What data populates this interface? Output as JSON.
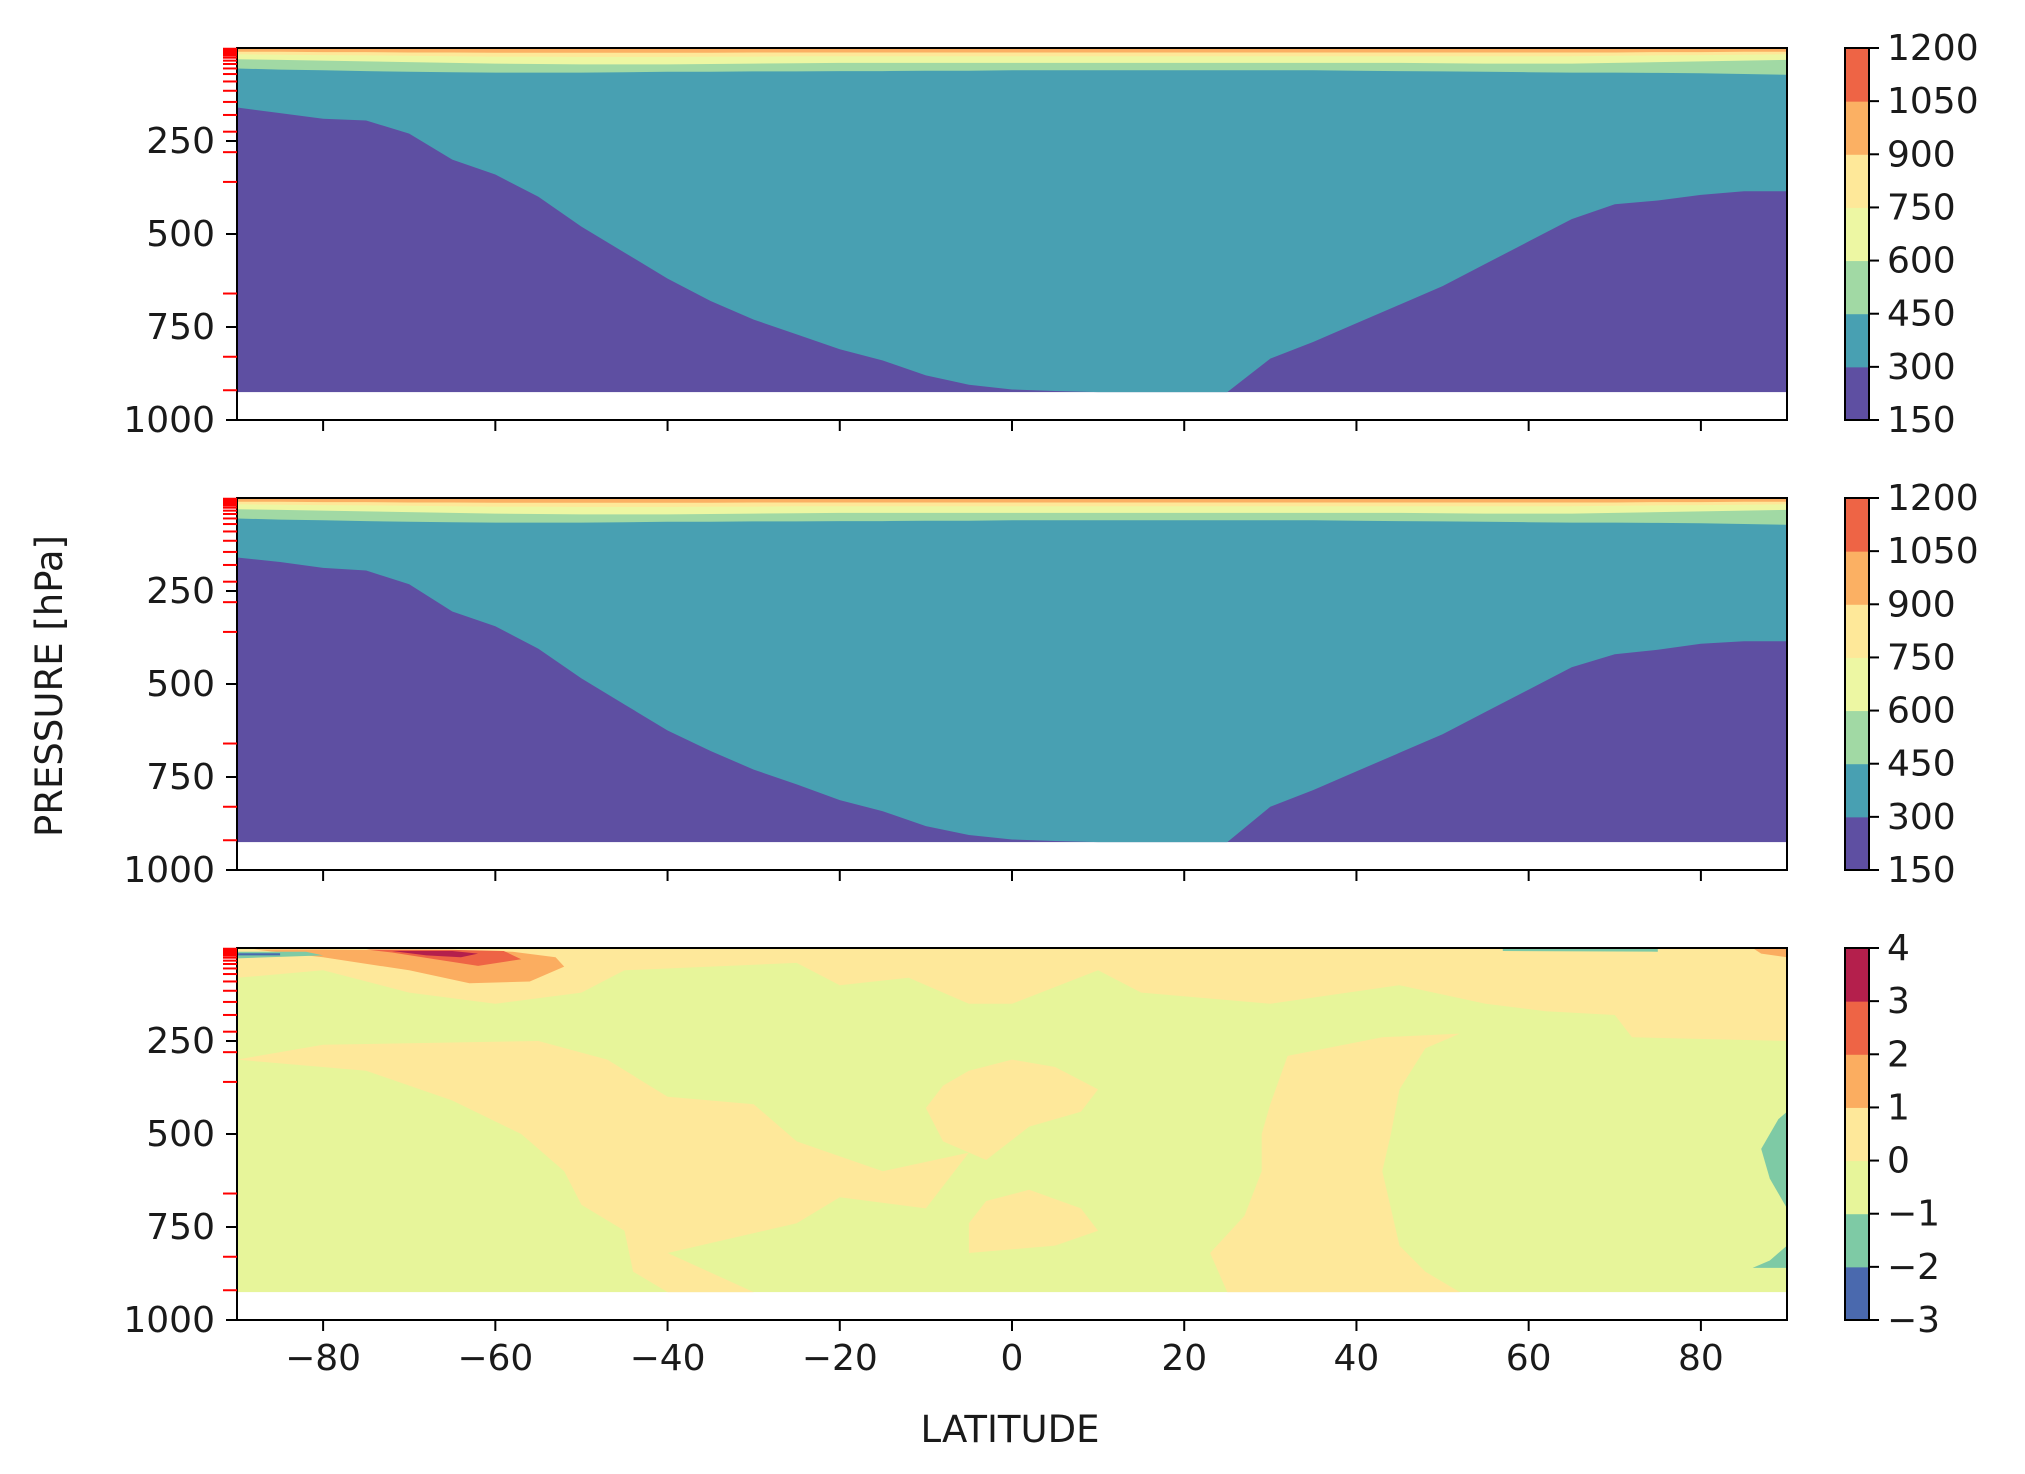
{
  "ylabel": "PRESSURE [hPa]",
  "xlabel": "LATITUDE",
  "chart_data": [
    {
      "type": "contourf",
      "panel": "top",
      "x": [
        -90,
        -85,
        -80,
        -75,
        -70,
        -65,
        -60,
        -55,
        -50,
        -45,
        -40,
        -35,
        -30,
        -25,
        -20,
        -15,
        -10,
        -5,
        0,
        5,
        10,
        15,
        20,
        25,
        30,
        35,
        40,
        45,
        50,
        55,
        60,
        65,
        70,
        75,
        80,
        85,
        90
      ],
      "xlim": [
        -90,
        90
      ],
      "ylim": [
        1000,
        0
      ],
      "y_ticks": [
        250,
        500,
        750,
        1000
      ],
      "x_ticks": [
        -80,
        -60,
        -40,
        -20,
        0,
        20,
        40,
        60,
        80
      ],
      "show_x_tick_labels": false,
      "data_bottom_pressure": 925,
      "levels": [
        150,
        300,
        450,
        600,
        750,
        900,
        1050,
        1200
      ],
      "colors": [
        "#5e4fa2",
        "#48a0b2",
        "#a1d9a4",
        "#edf7a3",
        "#fee899",
        "#fbb063",
        "#ee6445",
        "#d53e4f",
        "#b41f4c"
      ],
      "colorbar_ticks": [
        150,
        300,
        450,
        600,
        750,
        900,
        1050,
        1200
      ],
      "contours": [
        {
          "level": 300,
          "pressure": [
            160,
            175,
            190,
            195,
            230,
            300,
            340,
            400,
            480,
            550,
            620,
            680,
            730,
            770,
            810,
            840,
            880,
            905,
            918,
            922,
            925,
            925,
            925,
            925,
            835,
            790,
            740,
            690,
            640,
            580,
            520,
            460,
            420,
            410,
            395,
            385,
            385
          ]
        },
        {
          "level": 450,
          "pressure": [
            55,
            58,
            60,
            62,
            64,
            65,
            66,
            66,
            66,
            65,
            64,
            64,
            63,
            63,
            62,
            62,
            61,
            61,
            60,
            60,
            60,
            60,
            60,
            60,
            60,
            60,
            61,
            62,
            63,
            64,
            65,
            66,
            66,
            67,
            68,
            70,
            72
          ]
        },
        {
          "level": 600,
          "pressure": [
            30,
            32,
            34,
            36,
            38,
            40,
            42,
            43,
            44,
            44,
            44,
            43,
            42,
            41,
            40,
            40,
            40,
            40,
            40,
            40,
            40,
            40,
            40,
            40,
            40,
            40,
            40,
            40,
            41,
            42,
            42,
            42,
            40,
            38,
            36,
            34,
            32
          ]
        },
        {
          "level": 750,
          "pressure": [
            17,
            18,
            19,
            20,
            21,
            22,
            23,
            23,
            24,
            24,
            24,
            23,
            23,
            22,
            22,
            22,
            22,
            22,
            22,
            22,
            22,
            22,
            22,
            22,
            22,
            22,
            22,
            22,
            22,
            22,
            22,
            22,
            21,
            20,
            19,
            18,
            17
          ]
        },
        {
          "level": 900,
          "pressure": [
            10,
            10,
            11,
            11,
            12,
            12,
            13,
            13,
            13,
            13,
            13,
            13,
            12,
            12,
            12,
            12,
            12,
            12,
            12,
            12,
            12,
            12,
            12,
            12,
            12,
            12,
            12,
            12,
            12,
            12,
            12,
            12,
            12,
            11,
            11,
            10,
            10
          ]
        }
      ]
    },
    {
      "type": "contourf",
      "panel": "middle",
      "x": [
        -90,
        -85,
        -80,
        -75,
        -70,
        -65,
        -60,
        -55,
        -50,
        -45,
        -40,
        -35,
        -30,
        -25,
        -20,
        -15,
        -10,
        -5,
        0,
        5,
        10,
        15,
        20,
        25,
        30,
        35,
        40,
        45,
        50,
        55,
        60,
        65,
        70,
        75,
        80,
        85,
        90
      ],
      "xlim": [
        -90,
        90
      ],
      "ylim": [
        1000,
        0
      ],
      "y_ticks": [
        250,
        500,
        750,
        1000
      ],
      "x_ticks": [
        -80,
        -60,
        -40,
        -20,
        0,
        20,
        40,
        60,
        80
      ],
      "show_x_tick_labels": false,
      "data_bottom_pressure": 925,
      "levels": [
        150,
        300,
        450,
        600,
        750,
        900,
        1050,
        1200
      ],
      "colors": [
        "#5e4fa2",
        "#48a0b2",
        "#a1d9a4",
        "#edf7a3",
        "#fee899",
        "#fbb063",
        "#ee6445",
        "#d53e4f",
        "#b41f4c"
      ],
      "colorbar_ticks": [
        150,
        300,
        450,
        600,
        750,
        900,
        1050,
        1200
      ],
      "contours": [
        {
          "level": 300,
          "pressure": [
            160,
            172,
            188,
            195,
            232,
            305,
            345,
            405,
            485,
            555,
            625,
            680,
            730,
            770,
            812,
            842,
            882,
            906,
            918,
            922,
            925,
            925,
            925,
            925,
            830,
            785,
            735,
            685,
            635,
            575,
            515,
            455,
            420,
            408,
            392,
            385,
            385
          ]
        },
        {
          "level": 450,
          "pressure": [
            55,
            58,
            60,
            62,
            64,
            65,
            66,
            66,
            66,
            65,
            64,
            64,
            63,
            63,
            62,
            62,
            61,
            61,
            60,
            60,
            60,
            60,
            60,
            60,
            60,
            60,
            61,
            62,
            63,
            64,
            65,
            66,
            66,
            67,
            68,
            70,
            72
          ]
        },
        {
          "level": 600,
          "pressure": [
            30,
            32,
            34,
            36,
            38,
            40,
            42,
            43,
            44,
            44,
            44,
            43,
            42,
            41,
            40,
            40,
            40,
            40,
            40,
            40,
            40,
            40,
            40,
            40,
            40,
            40,
            40,
            40,
            41,
            42,
            42,
            42,
            40,
            38,
            36,
            34,
            32
          ]
        },
        {
          "level": 750,
          "pressure": [
            17,
            18,
            19,
            20,
            21,
            22,
            23,
            23,
            24,
            24,
            24,
            23,
            23,
            22,
            22,
            22,
            22,
            22,
            22,
            22,
            22,
            22,
            22,
            22,
            22,
            22,
            22,
            22,
            22,
            22,
            22,
            22,
            21,
            20,
            19,
            18,
            17
          ]
        },
        {
          "level": 900,
          "pressure": [
            10,
            10,
            11,
            11,
            12,
            12,
            13,
            13,
            13,
            13,
            13,
            13,
            12,
            12,
            12,
            12,
            12,
            12,
            12,
            12,
            12,
            12,
            12,
            12,
            12,
            12,
            12,
            12,
            12,
            12,
            12,
            12,
            12,
            11,
            11,
            10,
            10
          ]
        }
      ]
    },
    {
      "type": "contourf",
      "panel": "bottom",
      "xlim": [
        -90,
        90
      ],
      "ylim": [
        1000,
        0
      ],
      "y_ticks": [
        250,
        500,
        750,
        1000
      ],
      "x_ticks": [
        -80,
        -60,
        -40,
        -20,
        0,
        20,
        40,
        60,
        80
      ],
      "show_x_tick_labels": true,
      "data_bottom_pressure": 925,
      "levels": [
        -3,
        -2,
        -1,
        0,
        1,
        2,
        3,
        4
      ],
      "colors": [
        "#4a69ae",
        "#7ecaa5",
        "#e7f59a",
        "#fee89a",
        "#fbad60",
        "#ee6445",
        "#b41f4c"
      ],
      "colorbar_ticks": [
        -3,
        -2,
        -1,
        0,
        1,
        2,
        3,
        4
      ],
      "background_level": -1,
      "regions": [
        {
          "level": 0,
          "outline": [
            [
              -90,
              0
            ],
            [
              90,
              0
            ],
            [
              90,
              250
            ],
            [
              72,
              240
            ],
            [
              70,
              180
            ],
            [
              62,
              170
            ],
            [
              55,
              150
            ],
            [
              45,
              100
            ],
            [
              30,
              150
            ],
            [
              15,
              120
            ],
            [
              10,
              60
            ],
            [
              0,
              150
            ],
            [
              -5,
              150
            ],
            [
              -12,
              80
            ],
            [
              -20,
              100
            ],
            [
              -25,
              40
            ],
            [
              -45,
              60
            ],
            [
              -50,
              120
            ],
            [
              -60,
              150
            ],
            [
              -70,
              120
            ],
            [
              -80,
              60
            ],
            [
              -90,
              80
            ]
          ]
        },
        {
          "level": 0,
          "outline": [
            [
              -90,
              300
            ],
            [
              -75,
              330
            ],
            [
              -65,
              410
            ],
            [
              -57,
              500
            ],
            [
              -52,
              600
            ],
            [
              -50,
              690
            ],
            [
              -45,
              760
            ],
            [
              -44,
              870
            ],
            [
              -40,
              925
            ],
            [
              -30,
              925
            ],
            [
              -40,
              820
            ],
            [
              -25,
              740
            ],
            [
              -20,
              670
            ],
            [
              -10,
              700
            ],
            [
              -5,
              550
            ],
            [
              -15,
              600
            ],
            [
              -25,
              520
            ],
            [
              -30,
              420
            ],
            [
              -40,
              400
            ],
            [
              -47,
              300
            ],
            [
              -55,
              250
            ],
            [
              -80,
              260
            ]
          ]
        },
        {
          "level": 0,
          "outline": [
            [
              -3,
              570
            ],
            [
              2,
              480
            ],
            [
              8,
              440
            ],
            [
              10,
              380
            ],
            [
              5,
              320
            ],
            [
              0,
              300
            ],
            [
              -5,
              330
            ],
            [
              -8,
              370
            ],
            [
              -10,
              430
            ],
            [
              -8,
              520
            ]
          ]
        },
        {
          "level": 0,
          "outline": [
            [
              -5,
              820
            ],
            [
              5,
              800
            ],
            [
              10,
              760
            ],
            [
              8,
              700
            ],
            [
              2,
              650
            ],
            [
              -3,
              680
            ],
            [
              -5,
              740
            ]
          ]
        },
        {
          "level": 0,
          "outline": [
            [
              25,
              925
            ],
            [
              52,
              925
            ],
            [
              48,
              870
            ],
            [
              45,
              800
            ],
            [
              44,
              700
            ],
            [
              43,
              600
            ],
            [
              44,
              500
            ],
            [
              45,
              380
            ],
            [
              48,
              270
            ],
            [
              52,
              230
            ],
            [
              43,
              240
            ],
            [
              32,
              290
            ],
            [
              30,
              420
            ],
            [
              29,
              500
            ],
            [
              29,
              600
            ],
            [
              27,
              720
            ],
            [
              23,
              820
            ]
          ]
        },
        {
          "level": 1,
          "outline": [
            [
              -88,
              4
            ],
            [
              -80,
              4
            ],
            [
              -65,
              8
            ],
            [
              -58,
              10
            ],
            [
              -53,
              25
            ],
            [
              -52,
              50
            ],
            [
              -56,
              90
            ],
            [
              -63,
              95
            ],
            [
              -70,
              60
            ],
            [
              -80,
              25
            ]
          ]
        },
        {
          "level": 1,
          "outline": [
            [
              86,
              0
            ],
            [
              90,
              0
            ],
            [
              90,
              25
            ],
            [
              87,
              15
            ]
          ]
        },
        {
          "level": 2,
          "outline": [
            [
              -75,
              4
            ],
            [
              -65,
              5
            ],
            [
              -59,
              8
            ],
            [
              -57,
              30
            ],
            [
              -62,
              48
            ],
            [
              -67,
              30
            ],
            [
              -72,
              12
            ]
          ]
        },
        {
          "level": 3,
          "outline": [
            [
              -72,
              8
            ],
            [
              -65,
              8
            ],
            [
              -62,
              15
            ],
            [
              -64,
              25
            ],
            [
              -68,
              20
            ]
          ]
        },
        {
          "level": -2,
          "outline": [
            [
              -90,
              10
            ],
            [
              -82,
              10
            ],
            [
              -80,
              20
            ],
            [
              -90,
              28
            ]
          ]
        },
        {
          "level": -2,
          "outline": [
            [
              90,
              440
            ],
            [
              89,
              460
            ],
            [
              87,
              540
            ],
            [
              88,
              620
            ],
            [
              90,
              700
            ]
          ]
        },
        {
          "level": -2,
          "outline": [
            [
              90,
              800
            ],
            [
              88,
              840
            ],
            [
              86,
              860
            ],
            [
              90,
              860
            ]
          ]
        },
        {
          "level": -2,
          "outline": [
            [
              57,
              0
            ],
            [
              75,
              0
            ],
            [
              75,
              10
            ],
            [
              57,
              8
            ]
          ]
        },
        {
          "level": -3,
          "outline": [
            [
              -90,
              14
            ],
            [
              -85,
              14
            ],
            [
              -85,
              20
            ],
            [
              -90,
              20
            ]
          ]
        }
      ]
    }
  ]
}
